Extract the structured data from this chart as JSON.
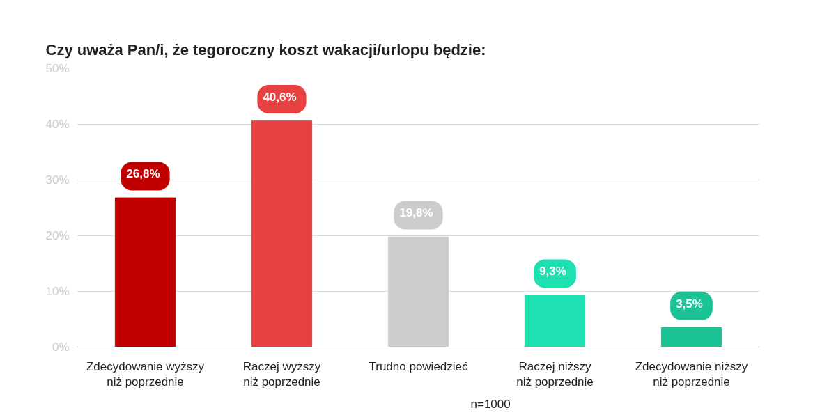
{
  "chart_data": {
    "type": "bar",
    "title": "Czy uważa Pan/i, że tegoroczny koszt wakacji/urlopu będzie:",
    "categories": [
      "Zdecydowanie wyższy\nniż poprzednie",
      "Raczej wyższy\nniż poprzednie",
      "Trudno powiedzieć",
      "Raczej niższy\nniż poprzednie",
      "Zdecydowanie niższy\nniż poprzednie"
    ],
    "values": [
      26.8,
      40.6,
      19.8,
      9.3,
      3.5
    ],
    "colors": [
      "#c00000",
      "#e84142",
      "#cccccc",
      "#1ee0b0",
      "#1ac294"
    ],
    "value_labels": [
      "26,8%",
      "40,6%",
      "19,8%",
      "9,3%",
      "3,5%"
    ],
    "ylim": [
      0,
      50
    ],
    "yticks": [
      {
        "value": 0,
        "label": "0%"
      },
      {
        "value": 10,
        "label": "10%"
      },
      {
        "value": 20,
        "label": "20%"
      },
      {
        "value": 30,
        "label": "30%"
      },
      {
        "value": 40,
        "label": "40%"
      },
      {
        "value": 50,
        "label": "50%"
      }
    ],
    "grid": "y",
    "annotations": [
      "n=1000"
    ]
  }
}
